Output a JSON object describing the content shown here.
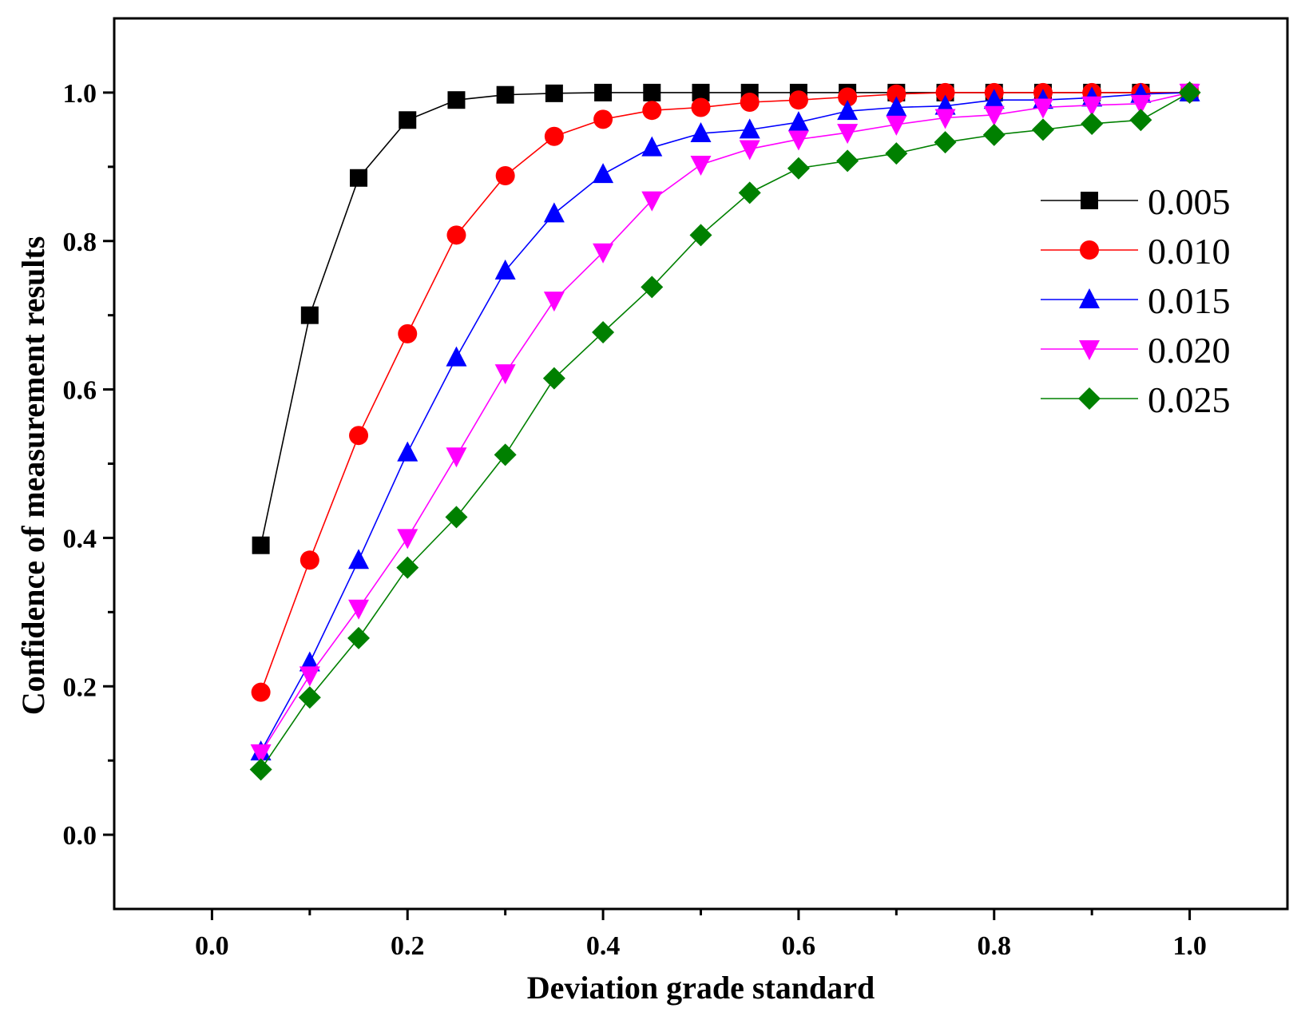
{
  "chart_data": {
    "type": "line",
    "title": "",
    "xlabel": "Deviation grade standard",
    "ylabel": "Confidence of measurement results",
    "xlim": [
      -0.1,
      1.1
    ],
    "ylim": [
      -0.1,
      1.1
    ],
    "xticks": [
      0.0,
      0.2,
      0.4,
      0.6,
      0.8,
      1.0
    ],
    "yticks": [
      0.0,
      0.2,
      0.4,
      0.6,
      0.8,
      1.0
    ],
    "xtick_labels": [
      "0.0",
      "0.2",
      "0.4",
      "0.6",
      "0.8",
      "1.0"
    ],
    "ytick_labels": [
      "0.0",
      "0.2",
      "0.4",
      "0.6",
      "0.8",
      "1.0"
    ],
    "grid": false,
    "legend_position": "right",
    "x": [
      0.05,
      0.1,
      0.15,
      0.2,
      0.25,
      0.3,
      0.35,
      0.4,
      0.45,
      0.5,
      0.55,
      0.6,
      0.65,
      0.7,
      0.75,
      0.8,
      0.85,
      0.9,
      0.95,
      1.0
    ],
    "series": [
      {
        "name": "0.005",
        "color": "#000000",
        "marker": "square",
        "values": [
          0.39,
          0.7,
          0.885,
          0.963,
          0.99,
          0.997,
          0.999,
          1.0,
          1.0,
          1.0,
          1.0,
          1.0,
          1.0,
          1.0,
          1.0,
          1.0,
          1.0,
          1.0,
          1.0,
          1.0
        ]
      },
      {
        "name": "0.010",
        "color": "#ff0000",
        "marker": "circle",
        "values": [
          0.192,
          0.37,
          0.538,
          0.675,
          0.808,
          0.888,
          0.941,
          0.964,
          0.976,
          0.98,
          0.987,
          0.99,
          0.994,
          0.998,
          1.0,
          1.0,
          1.0,
          1.0,
          1.0,
          1.0
        ]
      },
      {
        "name": "0.015",
        "color": "#0000ff",
        "marker": "triangle-up",
        "values": [
          0.112,
          0.232,
          0.37,
          0.515,
          0.643,
          0.76,
          0.837,
          0.89,
          0.926,
          0.945,
          0.95,
          0.96,
          0.975,
          0.98,
          0.982,
          0.99,
          0.99,
          0.993,
          0.998,
          1.0
        ]
      },
      {
        "name": "0.020",
        "color": "#ff00ff",
        "marker": "triangle-down",
        "values": [
          0.11,
          0.215,
          0.305,
          0.4,
          0.51,
          0.622,
          0.72,
          0.785,
          0.855,
          0.903,
          0.924,
          0.937,
          0.946,
          0.957,
          0.966,
          0.97,
          0.98,
          0.983,
          0.985,
          1.0
        ]
      },
      {
        "name": "0.025",
        "color": "#008000",
        "marker": "diamond",
        "values": [
          0.088,
          0.185,
          0.265,
          0.36,
          0.428,
          0.512,
          0.615,
          0.677,
          0.738,
          0.808,
          0.865,
          0.898,
          0.908,
          0.918,
          0.933,
          0.943,
          0.95,
          0.958,
          0.963,
          1.0
        ]
      }
    ]
  }
}
